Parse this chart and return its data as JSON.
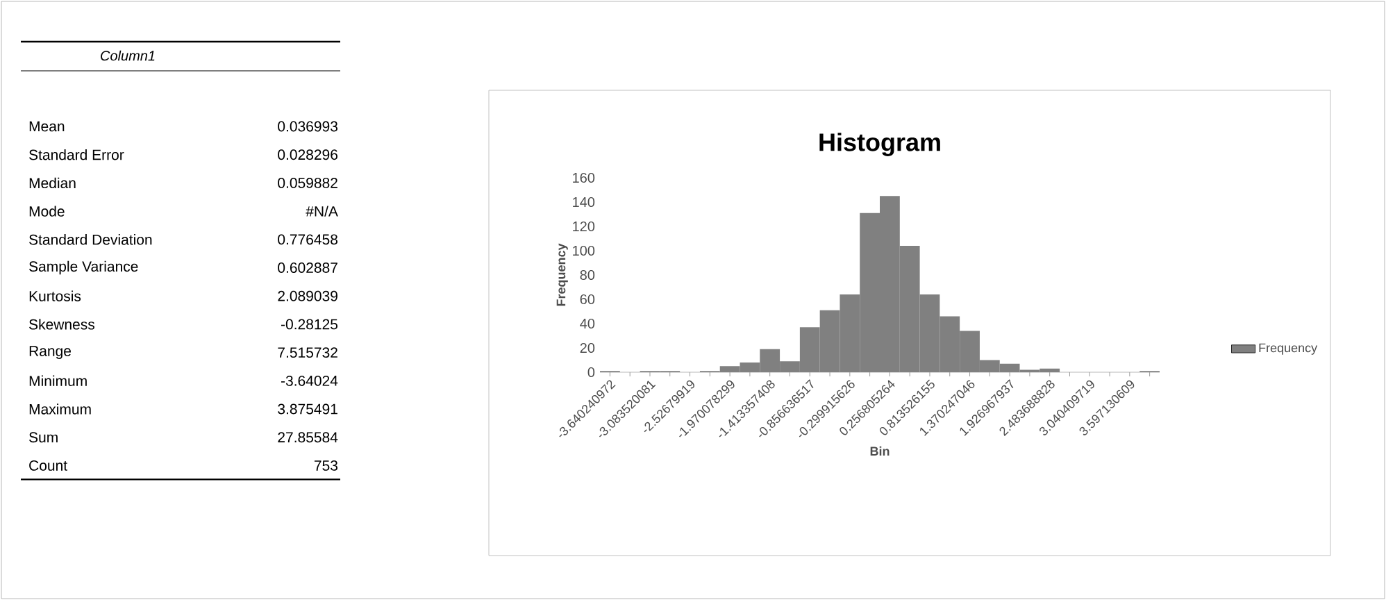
{
  "chart_data": [
    {
      "type": "other",
      "annotations": [
        "Column1",
        "Mean",
        "0.036993",
        "Standard Error",
        "0.028296",
        "Median",
        "0.059882",
        "Mode",
        "#N/A",
        "Standard Deviation",
        "0.776458",
        "Sample Variance",
        "0.602887",
        "Kurtosis",
        "2.089039",
        "Skewness",
        "-0.28125",
        "Range",
        "7.515732",
        "Minimum",
        "-3.64024",
        "Maximum",
        "3.875491",
        "Sum",
        "27.85584",
        "Count",
        "753"
      ]
    },
    {
      "type": "bar",
      "title": "Histogram",
      "xlabel": "Bin",
      "ylabel": "Frequency",
      "categories": [
        "-3.640240972",
        null,
        "-3.083520081",
        null,
        "-2.52679919",
        null,
        "-1.970078299",
        null,
        "-1.413357408",
        null,
        "-0.856636517",
        null,
        "-0.299915626",
        null,
        "0.256805264",
        null,
        "0.813526155",
        null,
        "1.370247046",
        null,
        "1.926967937",
        null,
        "2.483688828",
        null,
        "3.040409719",
        null,
        "3.597130609",
        null
      ],
      "series": [
        {
          "name": "Frequency",
          "color": "#808080",
          "values": [
            1,
            0,
            1,
            1,
            0,
            1,
            5,
            8,
            19,
            9,
            37,
            51,
            64,
            131,
            145,
            104,
            64,
            46,
            34,
            10,
            7,
            2,
            3,
            0,
            0,
            0,
            0,
            1
          ]
        }
      ],
      "ylim": [
        0,
        160
      ],
      "yticks": [
        0,
        20,
        40,
        60,
        80,
        100,
        120,
        140,
        160
      ],
      "legend": "right"
    }
  ]
}
